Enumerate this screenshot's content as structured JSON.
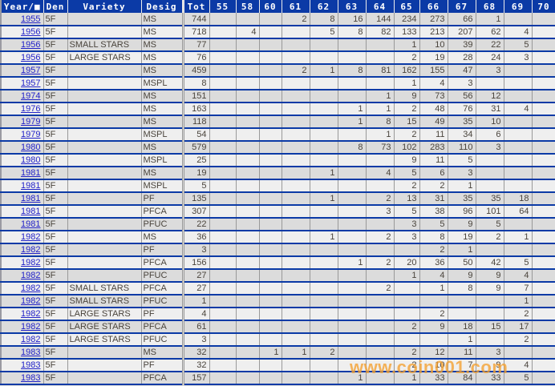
{
  "page": {
    "watermark": "www.coin001.com"
  },
  "colors": {
    "header_bg": "#0B3AA6",
    "header_text": "#FFFFFF",
    "row_separator": "#0B3AA6",
    "row_bg_odd": "#DCDCDC",
    "row_bg_even": "#EFEFEF",
    "grid_line": "#999999",
    "year_link": "#2323C8",
    "cell_text": "#4A443C",
    "watermark": "#F5A02E"
  },
  "table": {
    "columns": [
      "Year/■",
      "Den",
      "Variety",
      "Desig",
      "Tot",
      "55",
      "58",
      "60",
      "61",
      "62",
      "63",
      "64",
      "65",
      "66",
      "67",
      "68",
      "69",
      "70"
    ],
    "column_keys": [
      "year",
      "den",
      "variety",
      "desig",
      "tot",
      "55",
      "58",
      "60",
      "61",
      "62",
      "63",
      "64",
      "65",
      "66",
      "67",
      "68",
      "69",
      "70"
    ],
    "rows": [
      [
        "1955",
        "5F",
        "",
        "MS",
        "744",
        "",
        "",
        "",
        "2",
        "8",
        "16",
        "144",
        "234",
        "273",
        "66",
        "1",
        "",
        ""
      ],
      [
        "1956",
        "5F",
        "",
        "MS",
        "718",
        "",
        "4",
        "",
        "",
        "5",
        "8",
        "82",
        "133",
        "213",
        "207",
        "62",
        "4",
        ""
      ],
      [
        "1956",
        "5F",
        "SMALL STARS",
        "MS",
        "77",
        "",
        "",
        "",
        "",
        "",
        "",
        "",
        "1",
        "10",
        "39",
        "22",
        "5",
        ""
      ],
      [
        "1956",
        "5F",
        "LARGE STARS",
        "MS",
        "76",
        "",
        "",
        "",
        "",
        "",
        "",
        "",
        "2",
        "19",
        "28",
        "24",
        "3",
        ""
      ],
      [
        "1957",
        "5F",
        "",
        "MS",
        "459",
        "",
        "",
        "",
        "2",
        "1",
        "8",
        "81",
        "162",
        "155",
        "47",
        "3",
        "",
        ""
      ],
      [
        "1957",
        "5F",
        "",
        "MSPL",
        "8",
        "",
        "",
        "",
        "",
        "",
        "",
        "",
        "1",
        "4",
        "3",
        "",
        "",
        ""
      ],
      [
        "1974",
        "5F",
        "",
        "MS",
        "151",
        "",
        "",
        "",
        "",
        "",
        "",
        "1",
        "9",
        "73",
        "56",
        "12",
        "",
        ""
      ],
      [
        "1976",
        "5F",
        "",
        "MS",
        "163",
        "",
        "",
        "",
        "",
        "",
        "1",
        "1",
        "2",
        "48",
        "76",
        "31",
        "4",
        ""
      ],
      [
        "1979",
        "5F",
        "",
        "MS",
        "118",
        "",
        "",
        "",
        "",
        "",
        "1",
        "8",
        "15",
        "49",
        "35",
        "10",
        "",
        ""
      ],
      [
        "1979",
        "5F",
        "",
        "MSPL",
        "54",
        "",
        "",
        "",
        "",
        "",
        "",
        "1",
        "2",
        "11",
        "34",
        "6",
        "",
        ""
      ],
      [
        "1980",
        "5F",
        "",
        "MS",
        "579",
        "",
        "",
        "",
        "",
        "",
        "8",
        "73",
        "102",
        "283",
        "110",
        "3",
        "",
        ""
      ],
      [
        "1980",
        "5F",
        "",
        "MSPL",
        "25",
        "",
        "",
        "",
        "",
        "",
        "",
        "",
        "9",
        "11",
        "5",
        "",
        "",
        ""
      ],
      [
        "1981",
        "5F",
        "",
        "MS",
        "19",
        "",
        "",
        "",
        "",
        "1",
        "",
        "4",
        "5",
        "6",
        "3",
        "",
        "",
        ""
      ],
      [
        "1981",
        "5F",
        "",
        "MSPL",
        "5",
        "",
        "",
        "",
        "",
        "",
        "",
        "",
        "2",
        "2",
        "1",
        "",
        "",
        ""
      ],
      [
        "1981",
        "5F",
        "",
        "PF",
        "135",
        "",
        "",
        "",
        "",
        "1",
        "",
        "2",
        "13",
        "31",
        "35",
        "35",
        "18",
        ""
      ],
      [
        "1981",
        "5F",
        "",
        "PFCA",
        "307",
        "",
        "",
        "",
        "",
        "",
        "",
        "3",
        "5",
        "38",
        "96",
        "101",
        "64",
        ""
      ],
      [
        "1981",
        "5F",
        "",
        "PFUC",
        "22",
        "",
        "",
        "",
        "",
        "",
        "",
        "",
        "3",
        "5",
        "9",
        "5",
        "",
        ""
      ],
      [
        "1982",
        "5F",
        "",
        "MS",
        "36",
        "",
        "",
        "",
        "",
        "1",
        "",
        "2",
        "3",
        "8",
        "19",
        "2",
        "1",
        ""
      ],
      [
        "1982",
        "5F",
        "",
        "PF",
        "3",
        "",
        "",
        "",
        "",
        "",
        "",
        "",
        "",
        "2",
        "1",
        "",
        "",
        ""
      ],
      [
        "1982",
        "5F",
        "",
        "PFCA",
        "156",
        "",
        "",
        "",
        "",
        "",
        "1",
        "2",
        "20",
        "36",
        "50",
        "42",
        "5",
        ""
      ],
      [
        "1982",
        "5F",
        "",
        "PFUC",
        "27",
        "",
        "",
        "",
        "",
        "",
        "",
        "",
        "1",
        "4",
        "9",
        "9",
        "4",
        ""
      ],
      [
        "1982",
        "5F",
        "SMALL STARS",
        "PFCA",
        "27",
        "",
        "",
        "",
        "",
        "",
        "",
        "2",
        "",
        "1",
        "8",
        "9",
        "7",
        ""
      ],
      [
        "1982",
        "5F",
        "SMALL STARS",
        "PFUC",
        "1",
        "",
        "",
        "",
        "",
        "",
        "",
        "",
        "",
        "",
        "",
        "",
        "1",
        ""
      ],
      [
        "1982",
        "5F",
        "LARGE STARS",
        "PF",
        "4",
        "",
        "",
        "",
        "",
        "",
        "",
        "",
        "",
        "2",
        "",
        "",
        "2",
        ""
      ],
      [
        "1982",
        "5F",
        "LARGE STARS",
        "PFCA",
        "61",
        "",
        "",
        "",
        "",
        "",
        "",
        "",
        "2",
        "9",
        "18",
        "15",
        "17",
        ""
      ],
      [
        "1982",
        "5F",
        "LARGE STARS",
        "PFUC",
        "3",
        "",
        "",
        "",
        "",
        "",
        "",
        "",
        "",
        "",
        "1",
        "",
        "2",
        ""
      ],
      [
        "1983",
        "5F",
        "",
        "MS",
        "32",
        "",
        "",
        "1",
        "1",
        "2",
        "",
        "",
        "2",
        "12",
        "11",
        "3",
        "",
        ""
      ],
      [
        "1983",
        "5F",
        "",
        "PF",
        "32",
        "",
        "",
        "",
        "",
        "",
        "",
        "",
        "2",
        "10",
        "7",
        "9",
        "4",
        ""
      ],
      [
        "1983",
        "5F",
        "",
        "PFCA",
        "157",
        "",
        "",
        "",
        "",
        "",
        "1",
        "",
        "1",
        "33",
        "84",
        "33",
        "5",
        ""
      ]
    ]
  }
}
